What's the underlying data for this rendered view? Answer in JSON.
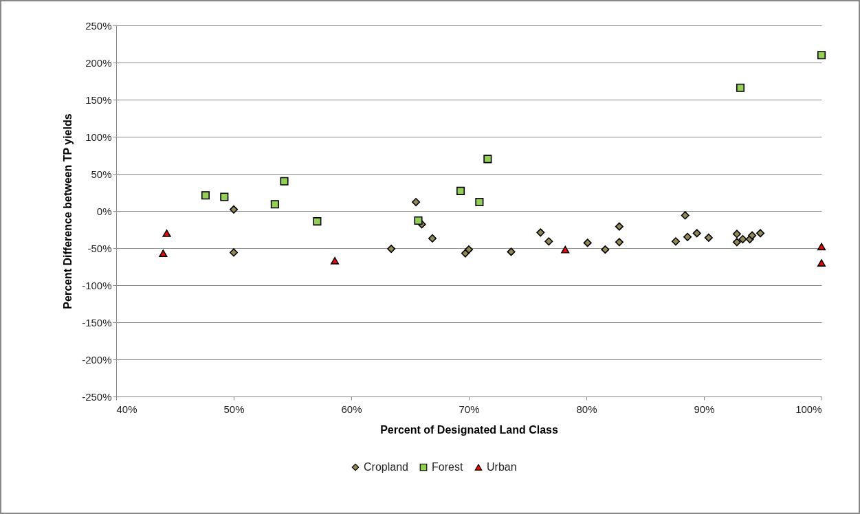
{
  "chart_data": {
    "type": "scatter",
    "xlabel": "Percent of Designated Land Class",
    "ylabel": "Percent Difference between TP  yields",
    "xlim": [
      40,
      100
    ],
    "ylim": [
      -250,
      250
    ],
    "xticks": [
      {
        "value": 40,
        "label": "40%"
      },
      {
        "value": 50,
        "label": "50%"
      },
      {
        "value": 60,
        "label": "60%"
      },
      {
        "value": 70,
        "label": "70%"
      },
      {
        "value": 80,
        "label": "80%"
      },
      {
        "value": 90,
        "label": "90%"
      },
      {
        "value": 100,
        "label": "100%"
      }
    ],
    "yticks": [
      {
        "value": -250,
        "label": "-250%"
      },
      {
        "value": -200,
        "label": "-200%"
      },
      {
        "value": -150,
        "label": "-150%"
      },
      {
        "value": -100,
        "label": "-100%"
      },
      {
        "value": -50,
        "label": "-50%"
      },
      {
        "value": 0,
        "label": "0%"
      },
      {
        "value": 50,
        "label": "50%"
      },
      {
        "value": 100,
        "label": "100%"
      },
      {
        "value": 150,
        "label": "150%"
      },
      {
        "value": 200,
        "label": "200%"
      },
      {
        "value": 250,
        "label": "250%"
      }
    ],
    "grid": "y",
    "legend": "bottom",
    "series": [
      {
        "name": "Cropland",
        "color": "#938953",
        "marker": "diamond",
        "x": [
          50,
          50,
          63.4,
          65.5,
          66,
          66.9,
          69.7,
          70,
          73.6,
          76.1,
          76.8,
          80.1,
          81.6,
          82.8,
          82.8,
          87.6,
          88.4,
          88.6,
          89.4,
          90.4,
          92.8,
          92.8,
          93.3,
          93.9,
          94.1,
          94.8
        ],
        "values": [
          2,
          -56,
          -51,
          12,
          -18,
          -37,
          -57,
          -52,
          -55,
          -29,
          -41,
          -43,
          -52,
          -21,
          -42,
          -41,
          -6,
          -35,
          -30,
          -36,
          -31,
          -42,
          -38,
          -38,
          -33,
          -30
        ]
      },
      {
        "name": "Forest",
        "color": "#92d050",
        "marker": "square",
        "x": [
          47.6,
          49.2,
          53.5,
          54.3,
          57.1,
          65.7,
          69.3,
          70.9,
          71.6,
          93.1,
          100
        ],
        "values": [
          21,
          19,
          9,
          40,
          -14,
          -13,
          27,
          12,
          70,
          166,
          210
        ]
      },
      {
        "name": "Urban",
        "color": "#ff0000",
        "marker": "triangle",
        "x": [
          44,
          44.3,
          58.6,
          78.2,
          100,
          100
        ],
        "values": [
          -57,
          -30,
          -67,
          -52,
          -48,
          -70
        ]
      }
    ]
  }
}
